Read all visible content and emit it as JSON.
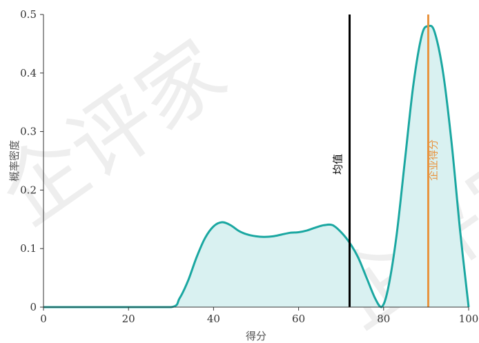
{
  "chart_data": {
    "type": "area",
    "title": "",
    "xlabel": "得分",
    "ylabel": "概率密度",
    "xlim": [
      0,
      100
    ],
    "ylim": [
      0,
      0.5
    ],
    "x_ticks": [
      0,
      20,
      40,
      60,
      80,
      100
    ],
    "y_ticks": [
      0,
      0.1,
      0.2,
      0.3,
      0.4,
      0.5
    ],
    "y_tick_labels": [
      "0",
      "0.1",
      "0.2",
      "0.3",
      "0.4",
      "0.5"
    ],
    "series": [
      {
        "x": [
          0,
          10,
          20,
          30,
          32,
          34,
          36,
          38,
          40,
          42,
          44,
          46,
          48,
          50,
          52,
          54,
          56,
          58,
          60,
          62,
          64,
          66,
          68,
          70,
          72,
          74,
          76,
          78,
          79.5,
          81,
          83,
          85,
          87,
          89,
          90.5,
          92,
          94,
          96,
          98,
          100
        ],
        "y": [
          0,
          0,
          0,
          0,
          0.015,
          0.045,
          0.085,
          0.118,
          0.138,
          0.145,
          0.14,
          0.13,
          0.124,
          0.121,
          0.12,
          0.121,
          0.124,
          0.127,
          0.128,
          0.131,
          0.136,
          0.14,
          0.14,
          0.128,
          0.11,
          0.085,
          0.05,
          0.015,
          0.0,
          0.03,
          0.12,
          0.25,
          0.38,
          0.465,
          0.48,
          0.47,
          0.4,
          0.28,
          0.13,
          0.0
        ]
      }
    ],
    "colors": {
      "line": "#1aa7a1",
      "fill": "#d9f1f1",
      "mean_line": "#000000",
      "company_line": "#e8933e"
    },
    "vlines": [
      {
        "x": 72,
        "label": "均值"
      },
      {
        "x": 90.5,
        "label": "企业得分"
      }
    ],
    "grid": false
  },
  "watermark": "企评家"
}
